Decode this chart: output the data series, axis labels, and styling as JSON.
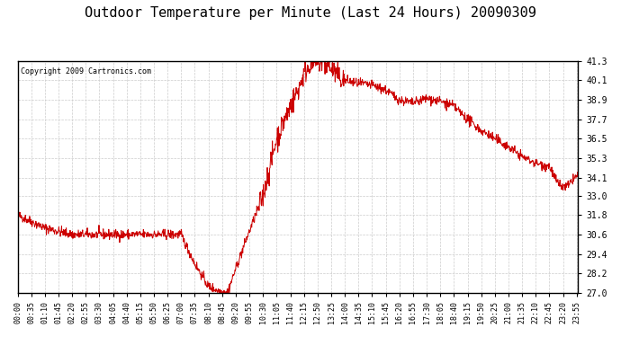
{
  "title": "Outdoor Temperature per Minute (Last 24 Hours) 20090309",
  "copyright": "Copyright 2009 Cartronics.com",
  "line_color": "#cc0000",
  "bg_color": "#ffffff",
  "plot_bg_color": "#ffffff",
  "grid_color": "#cccccc",
  "ylim": [
    27.0,
    41.3
  ],
  "yticks": [
    27.0,
    28.2,
    29.4,
    30.6,
    31.8,
    33.0,
    34.1,
    35.3,
    36.5,
    37.7,
    38.9,
    40.1,
    41.3
  ],
  "xtick_labels": [
    "00:00",
    "00:35",
    "01:10",
    "01:45",
    "02:20",
    "02:55",
    "03:30",
    "04:05",
    "04:40",
    "05:15",
    "05:50",
    "06:25",
    "07:00",
    "07:35",
    "08:10",
    "08:45",
    "09:20",
    "09:55",
    "10:30",
    "11:05",
    "11:40",
    "12:15",
    "12:50",
    "13:25",
    "14:00",
    "14:35",
    "15:10",
    "15:45",
    "16:20",
    "16:55",
    "17:30",
    "18:05",
    "18:40",
    "19:15",
    "19:50",
    "20:25",
    "21:00",
    "21:35",
    "22:10",
    "22:45",
    "23:20",
    "23:55"
  ],
  "keypoints": {
    "0": 31.8,
    "35": 31.4,
    "70": 31.0,
    "105": 30.5,
    "140": 30.6,
    "175": 30.5,
    "210": 30.6,
    "245": 30.6,
    "280": 30.6,
    "315": 30.5,
    "350": 30.6,
    "385": 30.6,
    "420": 30.6,
    "455": 28.8,
    "490": 27.1,
    "525": 27.05,
    "560": 28.5,
    "595": 30.8,
    "630": 34.5,
    "665": 36.5,
    "700": 39.2,
    "735": 40.1,
    "770": 41.3,
    "805": 41.0,
    "840": 40.1,
    "875": 39.8,
    "910": 39.9,
    "945": 39.3,
    "980": 38.9,
    "1015": 38.7,
    "1050": 38.9,
    "1085": 38.5,
    "1120": 38.3,
    "1155": 37.7,
    "1190": 37.0,
    "1225": 36.5,
    "1260": 36.0,
    "1295": 35.5,
    "1330": 35.3,
    "1365": 35.0,
    "1400": 34.5,
    "1435": 34.1
  }
}
